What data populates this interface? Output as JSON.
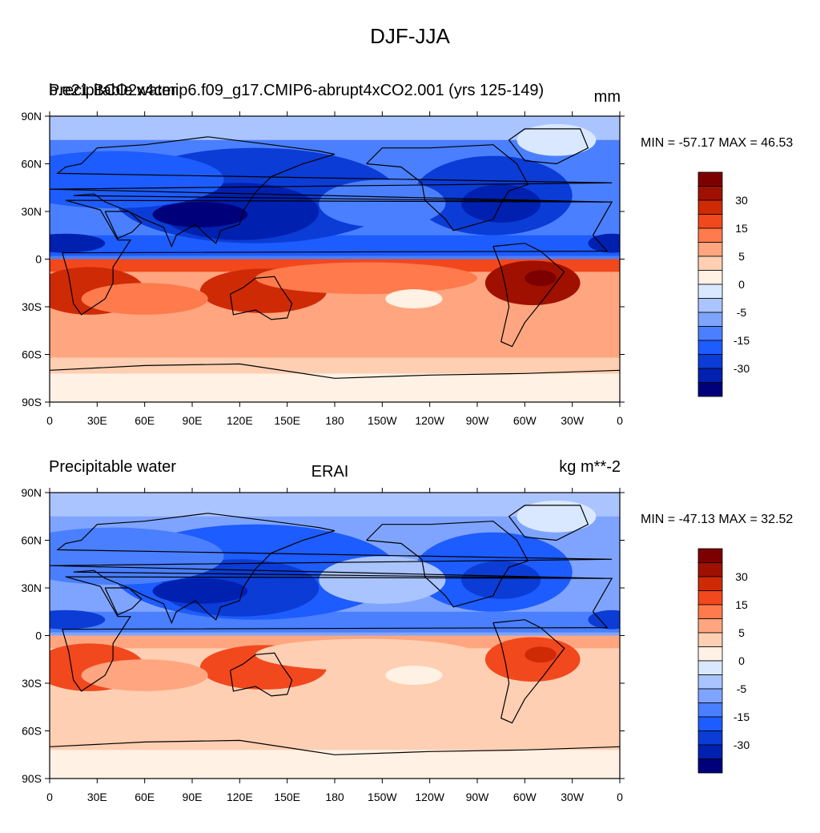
{
  "figure_title": "DJF-JJA",
  "colors": {
    "scale": [
      "#00007a",
      "#0020b0",
      "#0b3cd6",
      "#1d5cff",
      "#4a7fff",
      "#7fa4ff",
      "#aac4ff",
      "#d9e8ff",
      "#fff1e3",
      "#ffcfb3",
      "#ffa680",
      "#ff7a4c",
      "#f2481d",
      "#cf2a06",
      "#a01000",
      "#7d0000"
    ],
    "land_line": "#000000"
  },
  "colorbar": {
    "labels": [
      "30",
      "15",
      "5",
      "0",
      "-5",
      "-15",
      "-30"
    ]
  },
  "map_axes": {
    "lat_labels": [
      "90N",
      "60N",
      "30N",
      "0",
      "30S",
      "60S",
      "90S"
    ],
    "lon_labels": [
      "0",
      "30E",
      "60E",
      "90E",
      "120E",
      "150E",
      "180",
      "150W",
      "120W",
      "90W",
      "60W",
      "30W",
      "0"
    ]
  },
  "panels": [
    {
      "left_label": "Precipitable water",
      "left_label_overlap": "b.e21.BCO2x4cmip6.f09_g17.CMIP6-abrupt4xCO2.001 (yrs 125-149)",
      "center_label": "",
      "right_label": "mm",
      "stats": "MIN = -57.17 MAX =  46.53"
    },
    {
      "left_label": "Precipitable water",
      "center_label": "ERAI",
      "right_label": "kg m**-2",
      "stats": "MIN = -47.13 MAX =  32.52"
    }
  ]
}
